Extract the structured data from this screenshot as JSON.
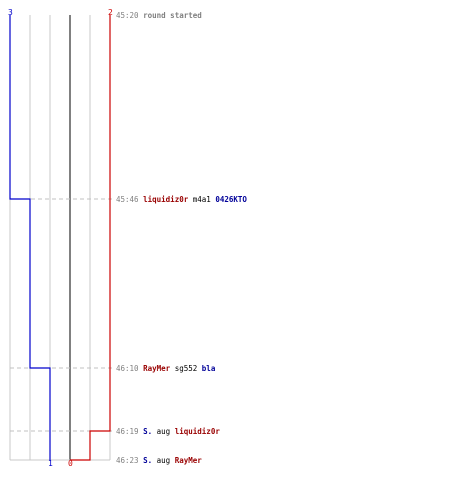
{
  "colors": {
    "background": "#ffffff",
    "team_blue": "#0000cc",
    "team_red": "#cc0000",
    "grid": "#c8c8c8",
    "center_line": "#808080",
    "time_text": "#808080",
    "dash_line": "#c0c0c0",
    "plain_text": "#000000",
    "player_blue": "#000099",
    "player_red": "#990000"
  },
  "header": {
    "blue_count": "3",
    "red_count": "2"
  },
  "footer": {
    "blue_count": "1",
    "red_count": "0"
  },
  "events": [
    {
      "time": "45:20",
      "parts": [
        {
          "text": "round started",
          "color": "#808080"
        }
      ]
    },
    {
      "time": "45:46",
      "parts": [
        {
          "text": "liquidiz0r",
          "color": "#990000"
        },
        {
          "text": "m4a1",
          "color": "#000000"
        },
        {
          "text": "0426KTO",
          "color": "#000099"
        }
      ]
    },
    {
      "time": "46:10",
      "parts": [
        {
          "text": "RayMer",
          "color": "#990000"
        },
        {
          "text": "sg552",
          "color": "#000000"
        },
        {
          "text": "bla",
          "color": "#000099"
        }
      ]
    },
    {
      "time": "46:19",
      "parts": [
        {
          "text": "S.",
          "color": "#000099"
        },
        {
          "text": "aug",
          "color": "#000000"
        },
        {
          "text": "liquidiz0r",
          "color": "#990000"
        }
      ]
    },
    {
      "time": "46:23",
      "parts": [
        {
          "text": "S.",
          "color": "#000099"
        },
        {
          "text": "aug",
          "color": "#000000"
        },
        {
          "text": "RayMer",
          "color": "#990000"
        }
      ]
    }
  ]
}
